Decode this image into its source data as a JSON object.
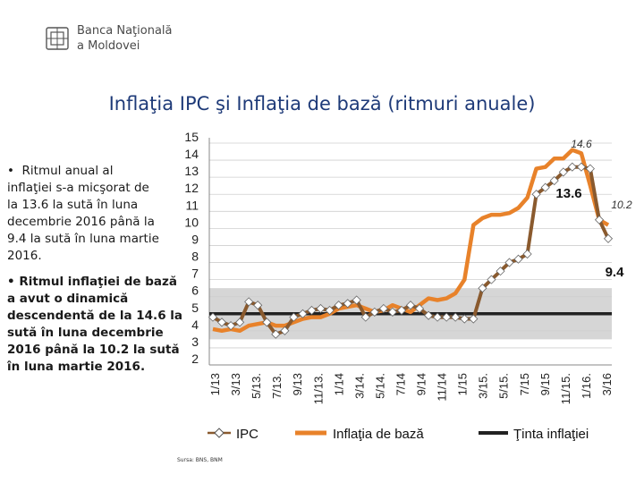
{
  "logo": {
    "line1": "Banca Naţională",
    "line2": "a Moldovei"
  },
  "title": "Inflaţia IPC şi Inflaţia de bază (ritmuri anuale)",
  "bullets": [
    "•  Ritmul anual al\ninflaţiei s-a micşorat de\nla 13.6 la sută în luna\ndecembrie 2016 până la\n9.4 la sută în luna martie\n2016.",
    "• Ritmul inflaţiei de bază\na avut o dinamică\ndescendentă de la 14.6 la\nsută în luna decembrie\n2016 până la 10.2 la sută\nîn luna martie 2016."
  ],
  "source": "Sursa: BNS, BNM",
  "colors": {
    "ipc": "#8a5a2e",
    "core": "#e8822a",
    "target": "#222222",
    "band": "#d6d6d6"
  },
  "chart_data": {
    "type": "line",
    "ylim": [
      2,
      15
    ],
    "yticks": [
      "15",
      "14",
      "13",
      "12",
      "11",
      "10",
      "9",
      "8",
      "7",
      "6",
      "5",
      "4",
      "3",
      "2"
    ],
    "xticks": [
      "1/13",
      "3/13",
      "5/13.",
      "7/13.",
      "9/13",
      "11/13.",
      "1/14",
      "3/14.",
      "5/14.",
      "7/14",
      "9/14",
      "11/14",
      "1/15",
      "3/15.",
      "5/15.",
      "7/15",
      "9/15",
      "11/15.",
      "1/16.",
      "3/16"
    ],
    "target_band": [
      3.5,
      6.5
    ],
    "series": [
      {
        "name": "IPC",
        "values": [
          4.8,
          4.5,
          4.3,
          4.5,
          5.7,
          5.5,
          4.5,
          3.8,
          4.0,
          4.8,
          5.0,
          5.2,
          5.3,
          5.2,
          5.5,
          5.6,
          5.8,
          4.8,
          5.1,
          5.3,
          5.1,
          5.2,
          5.5,
          5.3,
          4.9,
          4.8,
          4.8,
          4.8,
          4.7,
          4.7,
          6.5,
          7.0,
          7.5,
          8.0,
          8.2,
          8.5,
          12.0,
          12.4,
          12.8,
          13.3,
          13.6,
          13.6,
          13.5,
          10.5,
          9.4
        ]
      },
      {
        "name": "Inflaţia de bază",
        "values": [
          4.1,
          4.0,
          4.1,
          4.0,
          4.3,
          4.4,
          4.5,
          4.3,
          4.3,
          4.5,
          4.7,
          4.8,
          4.8,
          5.0,
          5.3,
          5.4,
          5.5,
          5.3,
          5.1,
          5.2,
          5.5,
          5.3,
          5.1,
          5.5,
          5.9,
          5.8,
          5.9,
          6.2,
          7.0,
          10.2,
          10.6,
          10.8,
          10.8,
          10.9,
          11.2,
          11.8,
          13.5,
          13.6,
          14.1,
          14.1,
          14.6,
          14.4,
          12.5,
          10.5,
          10.2
        ]
      },
      {
        "name": "Ţinta inflaţiei",
        "values": [
          5,
          5
        ]
      }
    ],
    "legend": [
      "IPC",
      "Inflaţia de bază",
      "Ţinta inflaţiei"
    ],
    "annotations": [
      "14.6",
      "13.6",
      "10.2",
      "9.4"
    ]
  }
}
